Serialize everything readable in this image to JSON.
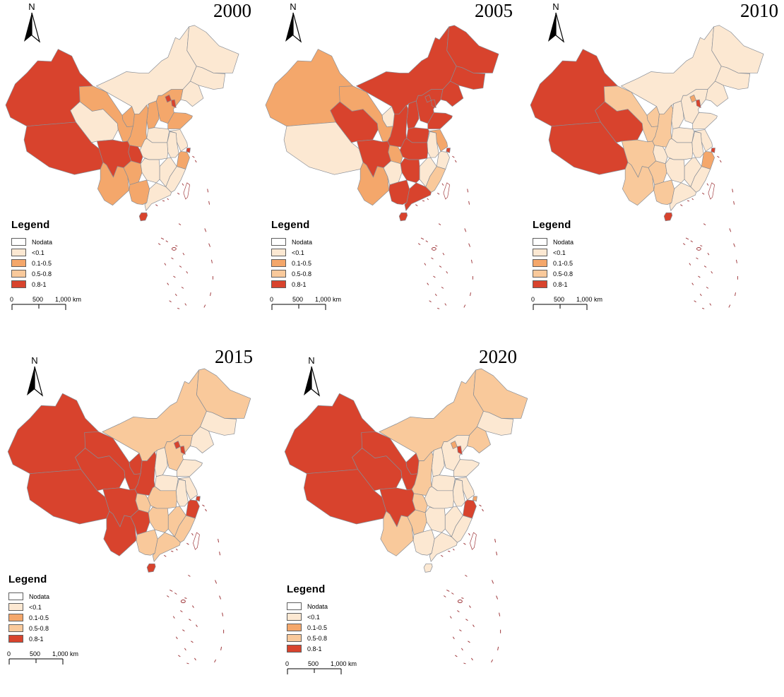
{
  "figure": {
    "background": "#ffffff"
  },
  "north_arrow": {
    "label": "N"
  },
  "legend": {
    "title": "Legend",
    "items": [
      {
        "label": "Nodata",
        "key": "nodata"
      },
      {
        "label": "<0.1",
        "key": "cls1"
      },
      {
        "label": "0.1-0.5",
        "key": "cls2"
      },
      {
        "label": "0.5-0.8",
        "key": "cls3"
      },
      {
        "label": "0.8-1",
        "key": "cls4"
      }
    ]
  },
  "scalebar": {
    "labels": [
      "0",
      "500",
      "1,000 km"
    ]
  },
  "colors": {
    "nodata": "#FFFFFF",
    "cls1": "#FCE8D2",
    "cls2": "#F4A76B",
    "cls3": "#F9C99B",
    "cls4": "#D8432D",
    "boundary": "#878D96",
    "island": "#A03A3E",
    "text": "#000000"
  },
  "maps": [
    {
      "year": "2000",
      "classes": {
        "xinjiang": "cls4",
        "tibet": "cls4",
        "qinghai": "cls1",
        "gansu": "cls2",
        "ningxia": "cls2",
        "innermongolia": "cls1",
        "heilongjiang": "cls1",
        "jilin": "cls1",
        "liaoning": "cls1",
        "beijing": "cls4",
        "tianjin": "cls4",
        "hebei": "cls2",
        "shanxi": "cls2",
        "shandong": "cls2",
        "henan": "cls1",
        "shaanxi": "cls2",
        "jiangsu": "cls1",
        "anhui": "cls1",
        "shanghai": "cls4",
        "zhejiang": "cls2",
        "hubei": "cls1",
        "chongqing": "cls4",
        "sichuan": "cls4",
        "guizhou": "cls2",
        "yunnan": "cls2",
        "hunan": "cls1",
        "jiangxi": "cls1",
        "fujian": "cls1",
        "guangdong": "cls1",
        "guangxi": "cls2",
        "hainan": "cls4",
        "taiwan": "nodata"
      }
    },
    {
      "year": "2005",
      "classes": {
        "xinjiang": "cls2",
        "tibet": "cls1",
        "qinghai": "cls4",
        "gansu": "cls2",
        "ningxia": "cls1",
        "innermongolia": "cls4",
        "heilongjiang": "cls4",
        "jilin": "cls4",
        "liaoning": "cls4",
        "beijing": "cls4",
        "tianjin": "cls4",
        "hebei": "cls4",
        "shanxi": "cls4",
        "shandong": "cls4",
        "henan": "cls4",
        "shaanxi": "cls4",
        "jiangsu": "cls2",
        "anhui": "cls1",
        "shanghai": "cls4",
        "zhejiang": "cls1",
        "hubei": "cls4",
        "chongqing": "cls2",
        "sichuan": "cls4",
        "guizhou": "cls1",
        "yunnan": "cls2",
        "hunan": "cls4",
        "jiangxi": "cls1",
        "fujian": "cls3",
        "guangdong": "cls4",
        "guangxi": "cls4",
        "hainan": "cls4",
        "taiwan": "nodata"
      }
    },
    {
      "year": "2010",
      "classes": {
        "xinjiang": "cls4",
        "tibet": "cls4",
        "qinghai": "cls4",
        "gansu": "cls3",
        "ningxia": "cls3",
        "innermongolia": "cls1",
        "heilongjiang": "cls1",
        "jilin": "cls1",
        "liaoning": "cls1",
        "beijing": "cls2",
        "tianjin": "cls4",
        "hebei": "cls1",
        "shanxi": "cls1",
        "shandong": "cls1",
        "henan": "cls1",
        "shaanxi": "cls3",
        "jiangsu": "cls1",
        "anhui": "cls1",
        "shanghai": "cls4",
        "zhejiang": "cls2",
        "hubei": "cls1",
        "chongqing": "cls1",
        "sichuan": "cls3",
        "guizhou": "cls3",
        "yunnan": "cls3",
        "hunan": "cls1",
        "jiangxi": "cls1",
        "fujian": "cls1",
        "guangdong": "cls1",
        "guangxi": "cls3",
        "hainan": "cls4",
        "taiwan": "nodata"
      }
    },
    {
      "year": "2015",
      "classes": {
        "xinjiang": "cls4",
        "tibet": "cls4",
        "qinghai": "cls4",
        "gansu": "cls4",
        "ningxia": "cls4",
        "innermongolia": "cls3",
        "heilongjiang": "cls3",
        "jilin": "cls1",
        "liaoning": "cls1",
        "beijing": "cls4",
        "tianjin": "cls4",
        "hebei": "cls3",
        "shanxi": "cls1",
        "shandong": "cls1",
        "henan": "cls1",
        "shaanxi": "cls4",
        "jiangsu": "cls1",
        "anhui": "cls1",
        "shanghai": "cls4",
        "zhejiang": "cls4",
        "hubei": "cls3",
        "chongqing": "cls3",
        "sichuan": "cls4",
        "guizhou": "cls4",
        "yunnan": "cls4",
        "hunan": "cls3",
        "jiangxi": "cls3",
        "fujian": "cls3",
        "guangdong": "cls3",
        "guangxi": "cls3",
        "hainan": "cls4",
        "taiwan": "nodata"
      }
    },
    {
      "year": "2020",
      "classes": {
        "xinjiang": "cls4",
        "tibet": "cls4",
        "qinghai": "cls4",
        "gansu": "cls4",
        "ningxia": "cls4",
        "innermongolia": "cls3",
        "heilongjiang": "cls3",
        "jilin": "cls1",
        "liaoning": "cls3",
        "beijing": "cls2",
        "tianjin": "cls4",
        "hebei": "cls1",
        "shanxi": "cls1",
        "shandong": "cls1",
        "henan": "cls1",
        "shaanxi": "cls3",
        "jiangsu": "cls1",
        "anhui": "cls1",
        "shanghai": "cls2",
        "zhejiang": "cls4",
        "hubei": "cls1",
        "chongqing": "cls3",
        "sichuan": "cls4",
        "guizhou": "cls3",
        "yunnan": "cls3",
        "hunan": "cls1",
        "jiangxi": "cls1",
        "fujian": "cls1",
        "guangdong": "cls1",
        "guangxi": "cls1",
        "hainan": "cls1",
        "taiwan": "nodata"
      }
    }
  ]
}
